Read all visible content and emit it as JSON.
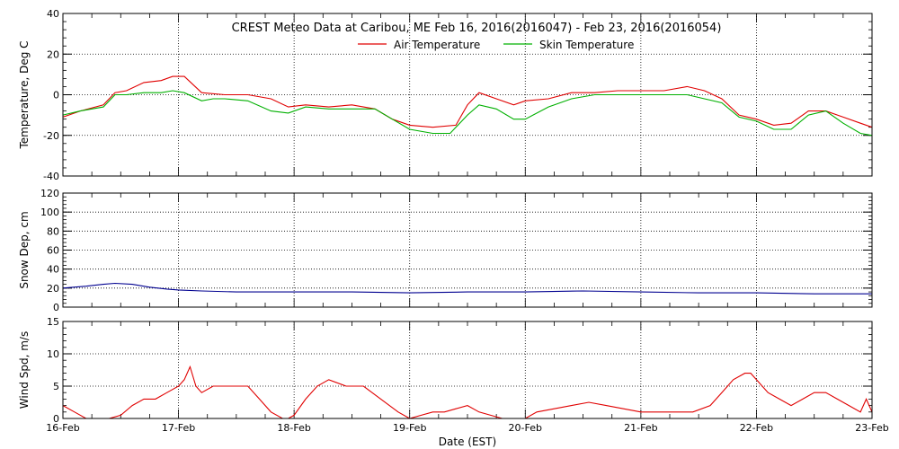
{
  "chart_data": [
    {
      "type": "line",
      "title": "CREST Meteo Data at Caribou, ME   Feb 16, 2016(2016047) - Feb 23, 2016(2016054)",
      "xlabel": "",
      "ylabel": "Temperature, Deg C",
      "xlim": [
        "2016-02-16",
        "2016-02-23"
      ],
      "ylim": [
        -40,
        40
      ],
      "yticks": [
        -40,
        -20,
        0,
        20,
        40
      ],
      "grid": true,
      "legend": "top-center",
      "series": [
        {
          "name": "Air Temperature",
          "color": "#e00000",
          "x": [
            0.0,
            0.15,
            0.35,
            0.45,
            0.55,
            0.7,
            0.85,
            0.95,
            1.05,
            1.2,
            1.4,
            1.6,
            1.8,
            1.95,
            2.1,
            2.3,
            2.5,
            2.7,
            2.85,
            3.0,
            3.2,
            3.4,
            3.5,
            3.6,
            3.75,
            3.9,
            4.0,
            4.2,
            4.4,
            4.6,
            4.8,
            5.0,
            5.2,
            5.4,
            5.55,
            5.7,
            5.85,
            6.0,
            6.15,
            6.3,
            6.45,
            6.6,
            6.75,
            6.9,
            7.0
          ],
          "y": [
            -11,
            -8,
            -5,
            1,
            2,
            6,
            7,
            9,
            9,
            1,
            0,
            0,
            -2,
            -6,
            -5,
            -6,
            -5,
            -7,
            -12,
            -15,
            -16,
            -15,
            -5,
            1,
            -2,
            -5,
            -3,
            -2,
            1,
            1,
            2,
            2,
            2,
            4,
            2,
            -2,
            -10,
            -12,
            -15,
            -14,
            -8,
            -8,
            -11,
            -14,
            -16
          ]
        },
        {
          "name": "Skin Temperature",
          "color": "#00b000",
          "x": [
            0.0,
            0.15,
            0.35,
            0.45,
            0.55,
            0.7,
            0.85,
            0.95,
            1.05,
            1.2,
            1.3,
            1.4,
            1.6,
            1.8,
            1.95,
            2.1,
            2.3,
            2.5,
            2.7,
            2.85,
            3.0,
            3.2,
            3.35,
            3.5,
            3.6,
            3.75,
            3.9,
            4.0,
            4.2,
            4.4,
            4.6,
            4.8,
            5.0,
            5.2,
            5.4,
            5.55,
            5.7,
            5.85,
            6.0,
            6.15,
            6.3,
            6.45,
            6.6,
            6.75,
            6.9,
            7.0
          ],
          "y": [
            -10,
            -8,
            -6,
            0,
            0,
            1,
            1,
            2,
            1,
            -3,
            -2,
            -2,
            -3,
            -8,
            -9,
            -6,
            -7,
            -7,
            -7,
            -12,
            -17,
            -19,
            -19,
            -10,
            -5,
            -7,
            -12,
            -12,
            -6,
            -2,
            0,
            0,
            0,
            0,
            0,
            -2,
            -4,
            -11,
            -13,
            -17,
            -17,
            -10,
            -8,
            -14,
            -19,
            -20
          ]
        }
      ]
    },
    {
      "type": "line",
      "title": "",
      "xlabel": "",
      "ylabel": "Snow Dep, cm",
      "xlim": [
        "2016-02-16",
        "2016-02-23"
      ],
      "ylim": [
        0,
        120
      ],
      "yticks": [
        0,
        20,
        40,
        60,
        80,
        100,
        120
      ],
      "grid": true,
      "series": [
        {
          "name": "",
          "color": "#000090",
          "x": [
            0.0,
            0.2,
            0.35,
            0.45,
            0.6,
            0.75,
            0.9,
            1.0,
            1.2,
            1.5,
            2.0,
            2.5,
            3.0,
            3.5,
            4.0,
            4.5,
            5.0,
            5.5,
            6.0,
            6.5,
            7.0
          ],
          "y": [
            20,
            22,
            24,
            25,
            24,
            21,
            19,
            18,
            17,
            16,
            16,
            16,
            15,
            16,
            16,
            17,
            16,
            15,
            15,
            14,
            14
          ]
        }
      ]
    },
    {
      "type": "line",
      "title": "",
      "xlabel": "Date (EST)",
      "ylabel": "Wind Spd, m/s",
      "xlim": [
        "2016-02-16",
        "2016-02-23"
      ],
      "ylim": [
        0,
        15
      ],
      "yticks": [
        0,
        5,
        10,
        15
      ],
      "xticks": [
        "16-Feb",
        "17-Feb",
        "18-Feb",
        "19-Feb",
        "20-Feb",
        "21-Feb",
        "22-Feb",
        "23-Feb"
      ],
      "grid": true,
      "series": [
        {
          "name": "",
          "color": "#e00000",
          "x": [
            0.0,
            0.1,
            0.2,
            0.3,
            0.4,
            0.5,
            0.6,
            0.7,
            0.8,
            0.9,
            1.0,
            1.05,
            1.1,
            1.15,
            1.2,
            1.3,
            1.45,
            1.6,
            1.7,
            1.8,
            1.9,
            1.95,
            2.0,
            2.1,
            2.2,
            2.3,
            2.45,
            2.6,
            2.75,
            2.9,
            3.0,
            3.1,
            3.2,
            3.3,
            3.4,
            3.5,
            3.6,
            3.7,
            3.8,
            3.9,
            4.0,
            4.1,
            4.25,
            4.4,
            4.55,
            4.7,
            4.85,
            5.0,
            5.15,
            5.3,
            5.45,
            5.6,
            5.7,
            5.8,
            5.9,
            5.95,
            6.0,
            6.1,
            6.2,
            6.3,
            6.4,
            6.5,
            6.6,
            6.7,
            6.8,
            6.9,
            6.95,
            7.0
          ],
          "y": [
            2,
            1,
            0,
            0,
            0,
            0.5,
            2,
            3,
            3,
            4,
            5,
            6,
            8,
            5,
            4,
            5,
            5,
            5,
            3,
            1,
            0,
            0,
            0.5,
            3,
            5,
            6,
            5,
            5,
            3,
            1,
            0,
            0.5,
            1,
            1,
            1.5,
            2,
            1,
            0.5,
            0,
            0,
            0,
            1,
            1.5,
            2,
            2.5,
            2,
            1.5,
            1,
            1,
            1,
            1,
            2,
            4,
            6,
            7,
            7,
            6,
            4,
            3,
            2,
            3,
            4,
            4,
            3,
            2,
            1,
            3,
            1
          ]
        }
      ]
    }
  ]
}
